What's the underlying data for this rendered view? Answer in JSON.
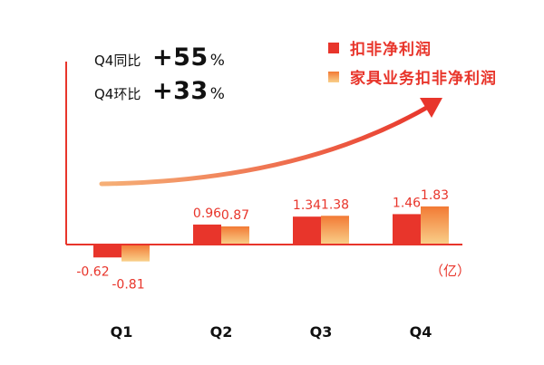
{
  "kpis": [
    {
      "label": "Q4同比",
      "value": "+55",
      "unit": "%"
    },
    {
      "label": "Q4环比",
      "value": "+33",
      "unit": "%"
    }
  ],
  "unit_label": "（亿）",
  "colors": {
    "primary": "#e8352b",
    "secondary_top": "#f27a35",
    "secondary_bottom": "#f9d08a",
    "axis": "#e8352b",
    "value_label": "#e8352b",
    "category_label": "#111111"
  },
  "chart_data": {
    "type": "bar",
    "categories": [
      "Q1",
      "Q2",
      "Q3",
      "Q4"
    ],
    "series": [
      {
        "name": "扣非净利润",
        "values": [
          -0.62,
          0.96,
          1.34,
          1.46
        ],
        "labels": [
          "-0.62",
          "0.96",
          "1.34",
          "1.46"
        ]
      },
      {
        "name": "家具业务扣非净利润",
        "values": [
          -0.81,
          0.87,
          1.38,
          1.83
        ],
        "labels": [
          "-0.81",
          "0.87",
          "1.38",
          "1.83"
        ]
      }
    ],
    "ylim": [
      -0.81,
      1.83
    ],
    "grid": false,
    "legend": "top-right",
    "annotation": "trend arrow rising to the upper right"
  }
}
